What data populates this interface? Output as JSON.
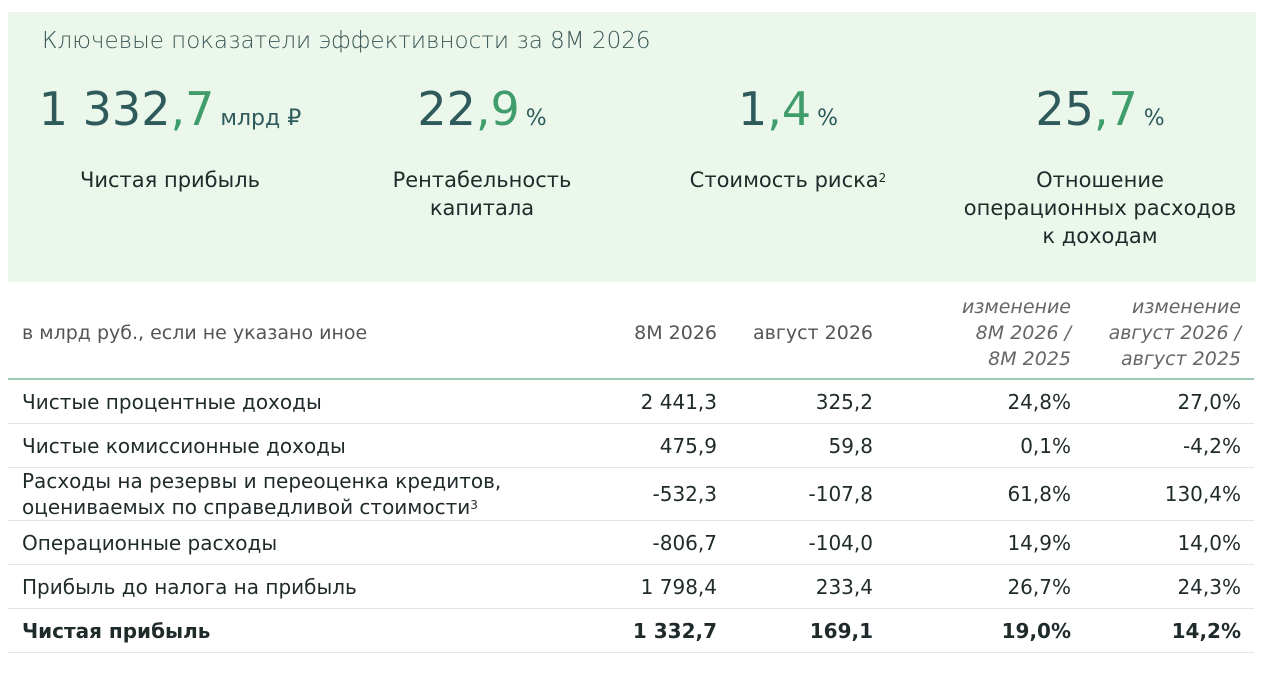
{
  "header": {
    "title": "Ключевые показатели эффективности за 8М 2026",
    "kpis": [
      {
        "value": "1 332,7",
        "unit": "млрд ₽",
        "label_lines": [
          "Чистая прибыль"
        ]
      },
      {
        "value": "22,9",
        "unit": "%",
        "label_lines": [
          "Рентабельность",
          "капитала"
        ]
      },
      {
        "value": "1,4",
        "unit": "%",
        "label_lines": [
          "Стоимость риска"
        ],
        "footnote": "2"
      },
      {
        "value": "25,7",
        "unit": "%",
        "label_lines": [
          "Отношение",
          "операционных расходов",
          "к доходам"
        ]
      }
    ]
  },
  "table": {
    "header": [
      [
        "в млрд руб., если не указано иное"
      ],
      [
        "8М 2026"
      ],
      [
        "август 2026"
      ],
      [
        "изменение",
        "8М 2026 /",
        "8М 2025"
      ],
      [
        "изменение",
        "август 2026 /",
        "август 2025"
      ]
    ],
    "rows": [
      {
        "label_lines": [
          "Чистые процентные доходы"
        ],
        "cells": [
          "2 441,3",
          "325,2",
          "24,8%",
          "27,0%"
        ]
      },
      {
        "label_lines": [
          "Чистые комиссионные доходы"
        ],
        "cells": [
          "475,9",
          "59,8",
          "0,1%",
          "-4,2%"
        ]
      },
      {
        "label_lines": [
          "Расходы на резервы и переоценка кредитов,",
          "оцениваемых по справедливой стоимости"
        ],
        "footnote": "3",
        "cells": [
          "-532,3",
          "-107,8",
          "61,8%",
          "130,4%"
        ]
      },
      {
        "label_lines": [
          "Операционные расходы"
        ],
        "cells": [
          "-806,7",
          "-104,0",
          "14,9%",
          "14,0%"
        ]
      },
      {
        "label_lines": [
          "Прибыль до налога на прибыль"
        ],
        "cells": [
          "1 798,4",
          "233,4",
          "26,7%",
          "24,3%"
        ]
      },
      {
        "label_lines": [
          "Чистая прибыль"
        ],
        "cells": [
          "1 332,7",
          "169,1",
          "19,0%",
          "14,2%"
        ],
        "bold": true
      }
    ]
  }
}
